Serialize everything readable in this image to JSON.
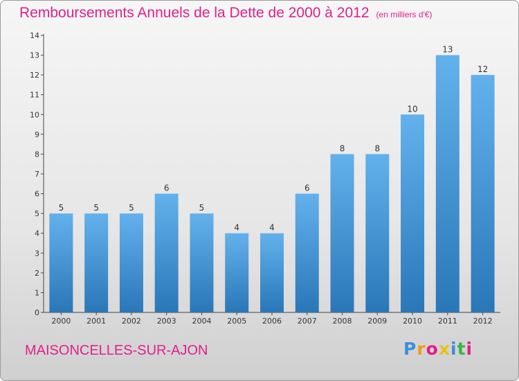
{
  "title": "Remboursements Annuels de la Dette de 2000 à 2012",
  "unit": "(en milliers d'€)",
  "town": "MAISONCELLES-SUR-AJON",
  "logo": {
    "letters": [
      "P",
      "r",
      "o",
      "x",
      "i",
      "t",
      "i"
    ],
    "colors": [
      "#3b8fd8",
      "#f29a1a",
      "#e0208a",
      "#e6c21a",
      "#3b8fd8",
      "#39b54a",
      "#e0208a"
    ]
  },
  "colors": {
    "bar_light": "#63b1ec",
    "bar_dark": "#2a77b8",
    "title": "#e0208a"
  },
  "chart_data": {
    "type": "bar",
    "title": "Remboursements Annuels de la Dette de 2000 à 2012",
    "xlabel": "",
    "ylabel": "",
    "categories": [
      "2000",
      "2001",
      "2002",
      "2003",
      "2004",
      "2005",
      "2006",
      "2007",
      "2008",
      "2009",
      "2010",
      "2011",
      "2012"
    ],
    "values": [
      5,
      5,
      5,
      6,
      5,
      4,
      4,
      6,
      8,
      8,
      10,
      13,
      12
    ],
    "ylim": [
      0,
      14
    ],
    "yticks": [
      "0",
      "1",
      "2",
      "3",
      "4",
      "5",
      "6",
      "7",
      "8",
      "9",
      "10",
      "11",
      "12",
      "13",
      "14"
    ],
    "grid": false,
    "legend": "none"
  }
}
